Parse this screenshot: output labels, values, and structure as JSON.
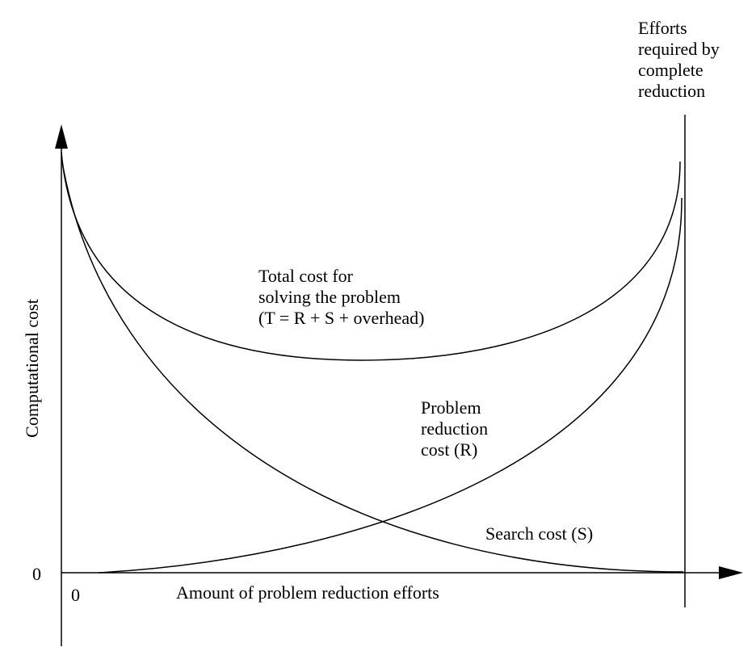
{
  "diagram": {
    "y_axis_label": "Computational cost",
    "x_axis_label": "Amount of problem reduction efforts",
    "y_origin_label": "0",
    "x_origin_label": "0",
    "complete_reduction_label": [
      "Efforts",
      "required by",
      "complete",
      "reduction"
    ],
    "total_cost_label": [
      "Total cost for",
      "solving the problem",
      "(T = R + S + overhead)"
    ],
    "reduction_cost_label": [
      "Problem",
      "reduction",
      "cost (R)"
    ],
    "search_cost_label": "Search cost (S)"
  }
}
